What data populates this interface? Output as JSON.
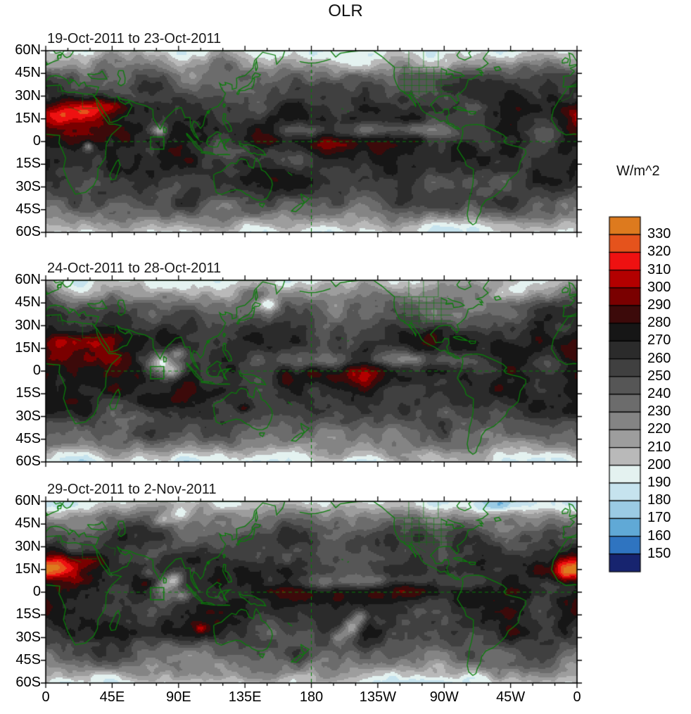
{
  "title": "OLR",
  "panels": [
    {
      "title": "19-Oct-2011 to 23-Oct-2011"
    },
    {
      "title": "24-Oct-2011 to 28-Oct-2011"
    },
    {
      "title": "29-Oct-2011 to 2-Nov-2011"
    }
  ],
  "axes": {
    "lat_ticks": [
      {
        "label": "60N",
        "lat": 60
      },
      {
        "label": "45N",
        "lat": 45
      },
      {
        "label": "30N",
        "lat": 30
      },
      {
        "label": "15N",
        "lat": 15
      },
      {
        "label": "0",
        "lat": 0
      },
      {
        "label": "15S",
        "lat": -15
      },
      {
        "label": "30S",
        "lat": -30
      },
      {
        "label": "45S",
        "lat": -45
      },
      {
        "label": "60S",
        "lat": -60
      }
    ],
    "lon_ticks": [
      {
        "label": "0",
        "lon": 0
      },
      {
        "label": "45E",
        "lon": 45
      },
      {
        "label": "90E",
        "lon": 90
      },
      {
        "label": "135E",
        "lon": 135
      },
      {
        "label": "180",
        "lon": 180
      },
      {
        "label": "135W",
        "lon": 225
      },
      {
        "label": "90W",
        "lon": 270
      },
      {
        "label": "45W",
        "lon": 315
      },
      {
        "label": "0",
        "lon": 360
      }
    ]
  },
  "colorbar": {
    "label": "W/m^2",
    "tick_values": [
      330,
      320,
      310,
      300,
      290,
      280,
      270,
      260,
      250,
      240,
      230,
      220,
      210,
      200,
      190,
      180,
      170,
      160,
      150
    ],
    "colors": [
      "#dd7a1e",
      "#e5531c",
      "#ee1111",
      "#b30000",
      "#7a0000",
      "#3c0a0a",
      "#161616",
      "#2b2b2b",
      "#404040",
      "#565656",
      "#6c6c6c",
      "#848484",
      "#9d9d9d",
      "#b9b9b9",
      "#e4f2f0",
      "#c6e3ee",
      "#9bcbe4",
      "#60a9d6",
      "#2f74c0",
      "#17246f"
    ]
  },
  "map": {
    "coast_color": "#0a7d0a",
    "dashed_meridian_lon": 180,
    "dashed_equator_lat": 0,
    "highlight_box": {
      "lon_min": 71,
      "lon_max": 80,
      "lat_min": -5,
      "lat_max": 3
    }
  },
  "chart_data": {
    "type": "heatmap",
    "title": "OLR",
    "units": "W/m^2",
    "panels": [
      "19-Oct-2011 to 23-Oct-2011",
      "24-Oct-2011 to 28-Oct-2011",
      "29-Oct-2011 to 2-Nov-2011"
    ],
    "x_ticks": [
      "0",
      "45E",
      "90E",
      "135E",
      "180",
      "135W",
      "90W",
      "45W",
      "0"
    ],
    "y_ticks": [
      "60N",
      "45N",
      "30N",
      "15N",
      "0",
      "15S",
      "30S",
      "45S",
      "60S"
    ],
    "xlim": [
      0,
      360
    ],
    "ylim": [
      -60,
      60
    ],
    "levels": [
      150,
      160,
      170,
      180,
      190,
      200,
      210,
      220,
      230,
      240,
      250,
      260,
      270,
      280,
      290,
      300,
      310,
      320,
      330
    ],
    "palette_high_to_low": [
      "#dd7a1e",
      "#e5531c",
      "#ee1111",
      "#b30000",
      "#7a0000",
      "#3c0a0a",
      "#161616",
      "#2b2b2b",
      "#404040",
      "#565656",
      "#6c6c6c",
      "#848484",
      "#9d9d9d",
      "#b9b9b9",
      "#e4f2f0",
      "#c6e3ee",
      "#9bcbe4",
      "#60a9d6",
      "#2f74c0",
      "#17246f"
    ],
    "legend_position": "right",
    "projection": "cylindrical equidistant, 60S-60N, 0E eastward to 0E"
  }
}
